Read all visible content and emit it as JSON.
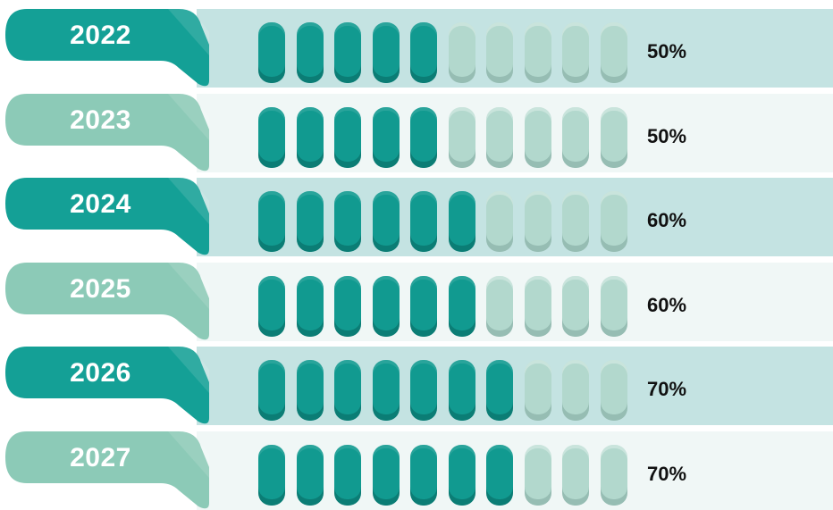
{
  "colors": {
    "accent_dark": "#14a096",
    "accent_light": "#8ccab7",
    "filled": "#119a90",
    "empty": "#b2d8cd",
    "row_dark": "#c4e3e2",
    "row_light": "#f0f7f6"
  },
  "chart_data": {
    "type": "bar",
    "style": "pictogram: 10 rounded pills per row, filled pills = percentage / 10",
    "categories": [
      "2022",
      "2023",
      "2024",
      "2025",
      "2026",
      "2027"
    ],
    "values": [
      50,
      50,
      60,
      60,
      70,
      70
    ],
    "value_labels": [
      "50%",
      "50%",
      "60%",
      "60%",
      "70%",
      "70%"
    ],
    "unit": "%",
    "pills_total": 10,
    "ylim": [
      0,
      100
    ],
    "title": "",
    "xlabel": "",
    "ylabel": ""
  }
}
